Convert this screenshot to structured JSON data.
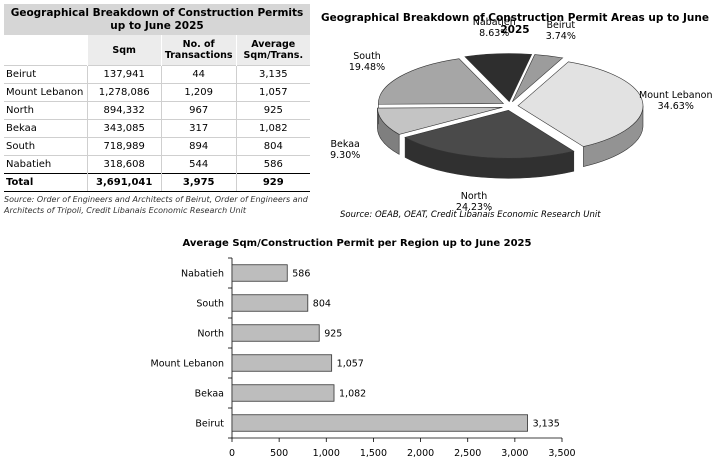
{
  "table": {
    "title": "Geographical Breakdown of Construction Permits up to June 2025",
    "headers": [
      "",
      "Sqm",
      "No. of Transactions",
      "Average Sqm/Trans."
    ],
    "rows": [
      [
        "Beirut",
        "137,941",
        "44",
        "3,135"
      ],
      [
        "Mount Lebanon",
        "1,278,086",
        "1,209",
        "1,057"
      ],
      [
        "North",
        "894,332",
        "967",
        "925"
      ],
      [
        "Bekaa",
        "343,085",
        "317",
        "1,082"
      ],
      [
        "South",
        "718,989",
        "894",
        "804"
      ],
      [
        "Nabatieh",
        "318,608",
        "544",
        "586"
      ]
    ],
    "total": [
      "Total",
      "3,691,041",
      "3,975",
      "929"
    ],
    "source": "Source: Order of Engineers and Architects of Beirut, Order of Engineers and Architects of Tripoli, Credit Libanais Economic Research Unit"
  },
  "chart_data": [
    {
      "type": "pie",
      "title": "Geographical Breakdown of Construction Permit Areas up to June 2025",
      "labels": [
        "Beirut",
        "Mount Lebanon",
        "North",
        "Bekaa",
        "South",
        "Nabatieh"
      ],
      "values": [
        3.74,
        34.63,
        24.23,
        9.3,
        19.48,
        8.63
      ],
      "value_labels": [
        "3.74%",
        "34.63%",
        "24.23%",
        "9.30%",
        "19.48%",
        "8.63%"
      ],
      "colors": [
        "#9c9c9c",
        "#e2e2e2",
        "#4a4a4a",
        "#c4c4c4",
        "#a6a6a6",
        "#2e2e2e"
      ],
      "source": "Source: OEAB, OEAT, Credit Libanais Economic Research Unit"
    },
    {
      "type": "bar",
      "orientation": "horizontal",
      "title": "Average Sqm/Construction Permit per Region up to June 2025",
      "categories": [
        "Nabatieh",
        "South",
        "North",
        "Mount Lebanon",
        "Bekaa",
        "Beirut"
      ],
      "values": [
        586,
        804,
        925,
        1057,
        1082,
        3135
      ],
      "value_labels": [
        "586",
        "804",
        "925",
        "1,057",
        "1,082",
        "3,135"
      ],
      "xlim": [
        0,
        3500
      ],
      "xticks": [
        0,
        500,
        1000,
        1500,
        2000,
        2500,
        3000,
        3500
      ],
      "xtick_labels": [
        "0",
        "500",
        "1,000",
        "1,500",
        "2,000",
        "2,500",
        "3,000",
        "3,500"
      ],
      "bar_color": "#bdbdbd",
      "grid": false
    }
  ]
}
